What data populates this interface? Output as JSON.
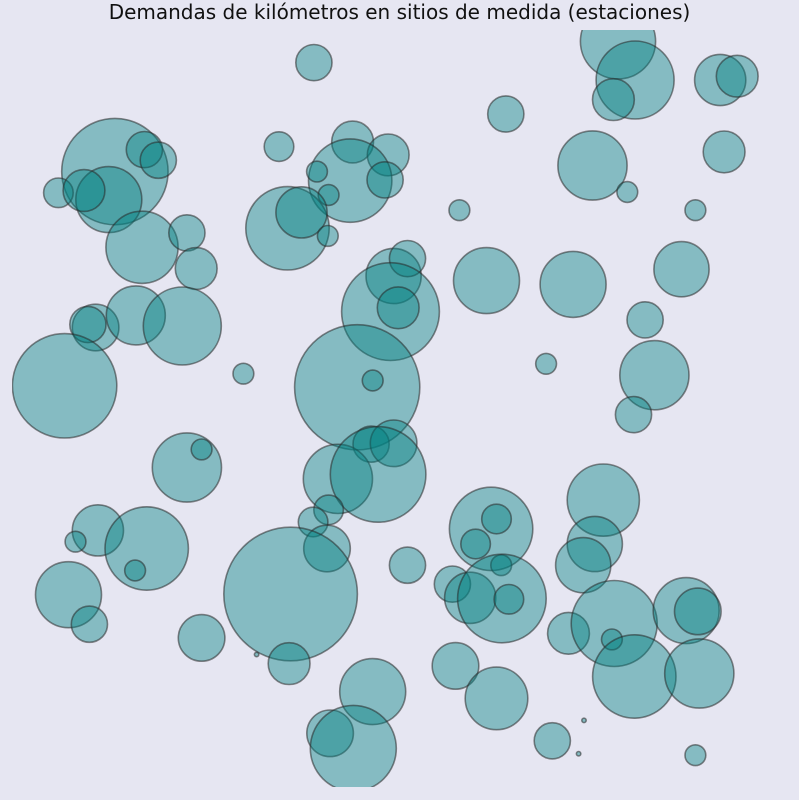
{
  "chart_data": {
    "type": "scatter",
    "title": "Demandas de kilómetros en sitios de medida (estaciones)",
    "xlabel": "",
    "ylabel": "",
    "xlim": [
      0,
      100
    ],
    "ylim": [
      0,
      100
    ],
    "axes_visible": false,
    "grid": false,
    "colors": {
      "fill": "#008080",
      "edge": "#333333",
      "background": "#e6e6f2"
    },
    "points": [
      {
        "x": 39.0,
        "y": 95.7,
        "size": 0.3
      },
      {
        "x": 78.3,
        "y": 98.5,
        "size": 1.3
      },
      {
        "x": 80.5,
        "y": 93.4,
        "size": 1.4
      },
      {
        "x": 77.7,
        "y": 90.8,
        "size": 0.4
      },
      {
        "x": 91.5,
        "y": 93.4,
        "size": 0.6
      },
      {
        "x": 93.7,
        "y": 93.9,
        "size": 0.4
      },
      {
        "x": 92.0,
        "y": 83.9,
        "size": 0.4
      },
      {
        "x": 88.3,
        "y": 76.2,
        "size": 0.1
      },
      {
        "x": 63.8,
        "y": 88.9,
        "size": 0.3
      },
      {
        "x": 75.0,
        "y": 82.1,
        "size": 1.1
      },
      {
        "x": 79.5,
        "y": 78.6,
        "size": 0.1
      },
      {
        "x": 86.5,
        "y": 68.4,
        "size": 0.7
      },
      {
        "x": 57.8,
        "y": 76.2,
        "size": 0.1
      },
      {
        "x": 61.3,
        "y": 66.9,
        "size": 1.0
      },
      {
        "x": 72.5,
        "y": 66.4,
        "size": 1.0
      },
      {
        "x": 81.8,
        "y": 61.7,
        "size": 0.3
      },
      {
        "x": 83.0,
        "y": 54.4,
        "size": 1.1
      },
      {
        "x": 80.3,
        "y": 49.2,
        "size": 0.3
      },
      {
        "x": 69.0,
        "y": 55.9,
        "size": 0.1
      },
      {
        "x": 13.3,
        "y": 81.3,
        "size": 2.6
      },
      {
        "x": 12.5,
        "y": 77.6,
        "size": 1.0
      },
      {
        "x": 17.1,
        "y": 84.2,
        "size": 0.3
      },
      {
        "x": 18.9,
        "y": 82.8,
        "size": 0.3
      },
      {
        "x": 6.0,
        "y": 78.5,
        "size": 0.2
      },
      {
        "x": 9.3,
        "y": 78.8,
        "size": 0.4
      },
      {
        "x": 16.8,
        "y": 71.3,
        "size": 1.2
      },
      {
        "x": 22.6,
        "y": 73.2,
        "size": 0.3
      },
      {
        "x": 23.8,
        "y": 68.5,
        "size": 0.4
      },
      {
        "x": 10.8,
        "y": 60.7,
        "size": 0.5
      },
      {
        "x": 9.8,
        "y": 61.1,
        "size": 0.3
      },
      {
        "x": 16.0,
        "y": 62.3,
        "size": 0.8
      },
      {
        "x": 22.0,
        "y": 60.9,
        "size": 1.4
      },
      {
        "x": 6.8,
        "y": 53.0,
        "size": 2.5
      },
      {
        "x": 29.9,
        "y": 54.6,
        "size": 0.1
      },
      {
        "x": 34.5,
        "y": 84.6,
        "size": 0.2
      },
      {
        "x": 44.0,
        "y": 85.2,
        "size": 0.4
      },
      {
        "x": 48.6,
        "y": 83.5,
        "size": 0.4
      },
      {
        "x": 43.7,
        "y": 80.1,
        "size": 1.6
      },
      {
        "x": 39.4,
        "y": 81.3,
        "size": 0.1
      },
      {
        "x": 48.2,
        "y": 80.2,
        "size": 0.3
      },
      {
        "x": 40.9,
        "y": 78.2,
        "size": 0.1
      },
      {
        "x": 35.6,
        "y": 73.8,
        "size": 1.6
      },
      {
        "x": 37.4,
        "y": 75.9,
        "size": 0.6
      },
      {
        "x": 40.8,
        "y": 72.8,
        "size": 0.1
      },
      {
        "x": 49.3,
        "y": 67.5,
        "size": 0.7
      },
      {
        "x": 51.1,
        "y": 69.8,
        "size": 0.3
      },
      {
        "x": 48.9,
        "y": 62.8,
        "size": 2.2
      },
      {
        "x": 49.9,
        "y": 63.3,
        "size": 0.4
      },
      {
        "x": 44.6,
        "y": 52.8,
        "size": 3.6
      },
      {
        "x": 46.6,
        "y": 53.7,
        "size": 0.1
      },
      {
        "x": 22.6,
        "y": 42.2,
        "size": 1.1
      },
      {
        "x": 24.5,
        "y": 44.6,
        "size": 0.1
      },
      {
        "x": 46.4,
        "y": 45.3,
        "size": 0.3
      },
      {
        "x": 49.3,
        "y": 45.4,
        "size": 0.5
      },
      {
        "x": 42.1,
        "y": 40.7,
        "size": 1.1
      },
      {
        "x": 47.3,
        "y": 41.3,
        "size": 2.1
      },
      {
        "x": 40.9,
        "y": 36.6,
        "size": 0.2
      },
      {
        "x": 38.9,
        "y": 35.0,
        "size": 0.2
      },
      {
        "x": 40.7,
        "y": 31.5,
        "size": 0.5
      },
      {
        "x": 11.1,
        "y": 33.9,
        "size": 0.6
      },
      {
        "x": 8.2,
        "y": 32.4,
        "size": 0.1
      },
      {
        "x": 17.4,
        "y": 31.5,
        "size": 1.6
      },
      {
        "x": 15.9,
        "y": 28.6,
        "size": 0.1
      },
      {
        "x": 7.3,
        "y": 25.4,
        "size": 1.0
      },
      {
        "x": 10.0,
        "y": 21.5,
        "size": 0.3
      },
      {
        "x": 36.0,
        "y": 25.5,
        "size": 4.1
      },
      {
        "x": 24.5,
        "y": 19.7,
        "size": 0.5
      },
      {
        "x": 51.1,
        "y": 29.3,
        "size": 0.3
      },
      {
        "x": 61.9,
        "y": 34.1,
        "size": 1.6
      },
      {
        "x": 62.6,
        "y": 35.4,
        "size": 0.2
      },
      {
        "x": 59.9,
        "y": 32.1,
        "size": 0.2
      },
      {
        "x": 63.2,
        "y": 29.3,
        "size": 0.1
      },
      {
        "x": 76.4,
        "y": 37.9,
        "size": 1.2
      },
      {
        "x": 75.3,
        "y": 32.1,
        "size": 0.7
      },
      {
        "x": 73.8,
        "y": 29.3,
        "size": 0.7
      },
      {
        "x": 56.9,
        "y": 26.8,
        "size": 0.3
      },
      {
        "x": 59.2,
        "y": 25.0,
        "size": 0.6
      },
      {
        "x": 63.3,
        "y": 24.9,
        "size": 1.8
      },
      {
        "x": 64.2,
        "y": 24.8,
        "size": 0.2
      },
      {
        "x": 71.9,
        "y": 20.3,
        "size": 0.4
      },
      {
        "x": 77.8,
        "y": 21.6,
        "size": 1.7
      },
      {
        "x": 77.5,
        "y": 19.5,
        "size": 0.1
      },
      {
        "x": 87.1,
        "y": 23.3,
        "size": 1.0
      },
      {
        "x": 88.6,
        "y": 23.2,
        "size": 0.5
      },
      {
        "x": 80.4,
        "y": 14.6,
        "size": 1.6
      },
      {
        "x": 88.8,
        "y": 15.0,
        "size": 1.1
      },
      {
        "x": 31.6,
        "y": 17.5,
        "size": 0.0
      },
      {
        "x": 35.8,
        "y": 16.3,
        "size": 0.4
      },
      {
        "x": 46.6,
        "y": 12.6,
        "size": 1.0
      },
      {
        "x": 57.3,
        "y": 16.0,
        "size": 0.5
      },
      {
        "x": 62.6,
        "y": 11.7,
        "size": 0.9
      },
      {
        "x": 41.1,
        "y": 7.1,
        "size": 0.5
      },
      {
        "x": 44.1,
        "y": 5.1,
        "size": 1.7
      },
      {
        "x": 73.9,
        "y": 8.8,
        "size": 0.0
      },
      {
        "x": 69.8,
        "y": 6.1,
        "size": 0.3
      },
      {
        "x": 73.2,
        "y": 4.4,
        "size": 0.0
      },
      {
        "x": 88.3,
        "y": 4.2,
        "size": 0.1
      }
    ]
  }
}
